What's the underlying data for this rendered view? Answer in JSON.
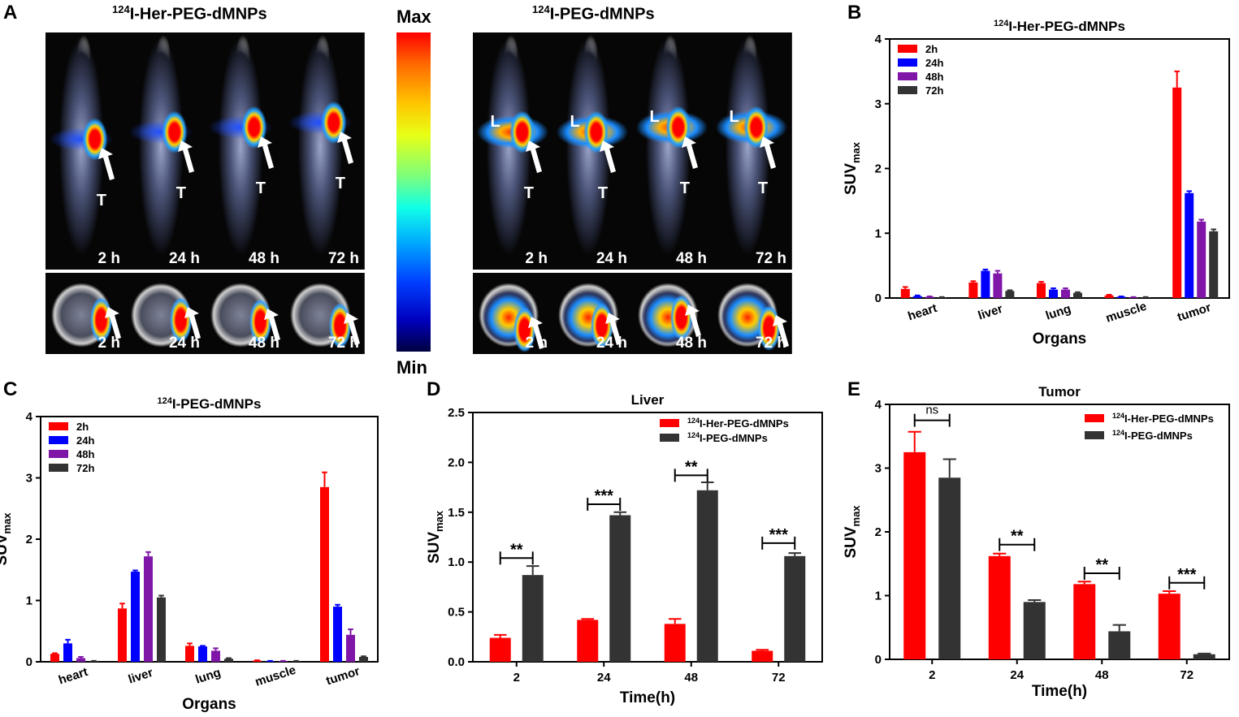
{
  "panels": {
    "A": "A",
    "B": "B",
    "C": "C",
    "D": "D",
    "E": "E"
  },
  "imaging": {
    "left_title_sup": "124",
    "left_title_main": "I-Her-PEG-dMNPs",
    "right_title_sup": "124",
    "right_title_main": "I-PEG-dMNPs",
    "colorbar_max": "Max",
    "colorbar_min": "Min",
    "timepoints": [
      "2 h",
      "24 h",
      "48 h",
      "72 h"
    ],
    "marker_tumor": "T",
    "marker_liver": "L"
  },
  "chart_data": [
    {
      "id": "B",
      "type": "bar",
      "title_sup": "124",
      "title": "I-Her-PEG-dMNPs",
      "xlabel": "Organs",
      "ylabel": "SUV",
      "ylabel_sub": "max",
      "ylim": [
        0,
        4
      ],
      "yticks": [
        "0",
        "1",
        "2",
        "3",
        "4"
      ],
      "categories": [
        "heart",
        "liver",
        "lung",
        "muscle",
        "tumor"
      ],
      "series": [
        {
          "name": "2h",
          "color": "#ff0000",
          "values": [
            0.14,
            0.24,
            0.23,
            0.04,
            3.25
          ],
          "errors": [
            0.03,
            0.02,
            0.02,
            0.01,
            0.25
          ]
        },
        {
          "name": "24h",
          "color": "#0000ff",
          "values": [
            0.03,
            0.42,
            0.13,
            0.02,
            1.62
          ],
          "errors": [
            0.01,
            0.02,
            0.02,
            0.005,
            0.03
          ]
        },
        {
          "name": "48h",
          "color": "#7f16a8",
          "values": [
            0.02,
            0.38,
            0.13,
            0.01,
            1.18
          ],
          "errors": [
            0.005,
            0.04,
            0.02,
            0.005,
            0.03
          ]
        },
        {
          "name": "72h",
          "color": "#333333",
          "values": [
            0.01,
            0.11,
            0.08,
            0.01,
            1.03
          ],
          "errors": [
            0.005,
            0.01,
            0.01,
            0.005,
            0.03
          ]
        }
      ]
    },
    {
      "id": "C",
      "type": "bar",
      "title_sup": "124",
      "title": "I-PEG-dMNPs",
      "xlabel": "Organs",
      "ylabel": "SUV",
      "ylabel_sub": "max",
      "ylim": [
        0,
        4
      ],
      "yticks": [
        "0",
        "1",
        "2",
        "3",
        "4"
      ],
      "categories": [
        "heart",
        "liver",
        "lung",
        "muscle",
        "tumor"
      ],
      "series": [
        {
          "name": "2h",
          "color": "#ff0000",
          "values": [
            0.13,
            0.87,
            0.26,
            0.02,
            2.85
          ],
          "errors": [
            0.01,
            0.08,
            0.04,
            0.005,
            0.24
          ]
        },
        {
          "name": "24h",
          "color": "#0000ff",
          "values": [
            0.3,
            1.47,
            0.25,
            0.01,
            0.9
          ],
          "errors": [
            0.06,
            0.02,
            0.01,
            0.005,
            0.03
          ]
        },
        {
          "name": "48h",
          "color": "#7f16a8",
          "values": [
            0.06,
            1.72,
            0.18,
            0.01,
            0.44
          ],
          "errors": [
            0.02,
            0.07,
            0.04,
            0.005,
            0.09
          ]
        },
        {
          "name": "72h",
          "color": "#333333",
          "values": [
            0.01,
            1.05,
            0.05,
            0.01,
            0.08
          ],
          "errors": [
            0.005,
            0.03,
            0.01,
            0.005,
            0.01
          ]
        }
      ]
    },
    {
      "id": "D",
      "type": "bar",
      "title": "Liver",
      "xlabel": "Time(h)",
      "ylabel": "SUV",
      "ylabel_sub": "max",
      "ylim": [
        0,
        2.5
      ],
      "yticks": [
        "0.0",
        "0.5",
        "1.0",
        "1.5",
        "2.0",
        "2.5"
      ],
      "categories": [
        "2",
        "24",
        "48",
        "72"
      ],
      "series": [
        {
          "name_sup": "124",
          "name": "I-Her-PEG-dMNPs",
          "color": "#ff0000",
          "values": [
            0.24,
            0.42,
            0.38,
            0.11
          ],
          "errors": [
            0.03,
            0.01,
            0.05,
            0.01
          ]
        },
        {
          "name_sup": "124",
          "name": "I-PEG-dMNPs",
          "color": "#333333",
          "values": [
            0.87,
            1.47,
            1.72,
            1.06
          ],
          "errors": [
            0.09,
            0.03,
            0.08,
            0.03
          ]
        }
      ],
      "significance": [
        "**",
        "***",
        "**",
        "***"
      ],
      "sig_levels": [
        1.04,
        1.58,
        1.87,
        1.19
      ]
    },
    {
      "id": "E",
      "type": "bar",
      "title": "Tumor",
      "xlabel": "Time(h)",
      "ylabel": "SUV",
      "ylabel_sub": "max",
      "ylim": [
        0,
        4
      ],
      "yticks": [
        "0",
        "1",
        "2",
        "3",
        "4"
      ],
      "categories": [
        "2",
        "24",
        "48",
        "72"
      ],
      "series": [
        {
          "name_sup": "124",
          "name": "I-Her-PEG-dMNPs",
          "color": "#ff0000",
          "values": [
            3.25,
            1.62,
            1.18,
            1.03
          ],
          "errors": [
            0.32,
            0.04,
            0.04,
            0.04
          ]
        },
        {
          "name_sup": "124",
          "name": "I-PEG-dMNPs",
          "color": "#333333",
          "values": [
            2.85,
            0.9,
            0.44,
            0.08
          ],
          "errors": [
            0.29,
            0.03,
            0.1,
            0.01
          ]
        }
      ],
      "significance": [
        "ns",
        "**",
        "**",
        "***"
      ],
      "sig_levels": [
        3.75,
        1.8,
        1.35,
        1.2
      ]
    }
  ]
}
